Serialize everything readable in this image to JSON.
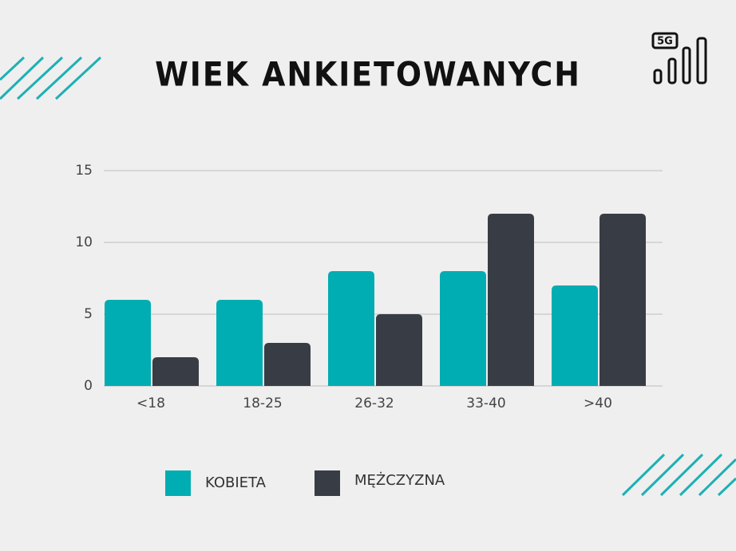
{
  "icon": {
    "label": "5G"
  },
  "chart_data": {
    "type": "bar",
    "title": "WIEK ANKIETOWANYCH",
    "categories": [
      "<18",
      "18-25",
      "26-32",
      "33-40",
      ">40"
    ],
    "series": [
      {
        "name": "KOBIETA",
        "color": "#00adb2",
        "values": [
          6,
          6,
          8,
          8,
          7
        ]
      },
      {
        "name": "MĘŻCZYZNA",
        "color": "#383c45",
        "values": [
          2,
          3,
          5,
          12,
          12
        ]
      }
    ],
    "ylim": [
      0,
      15
    ],
    "yticks": [
      0,
      5,
      10,
      15
    ],
    "grid": true,
    "legend": "bottom"
  }
}
